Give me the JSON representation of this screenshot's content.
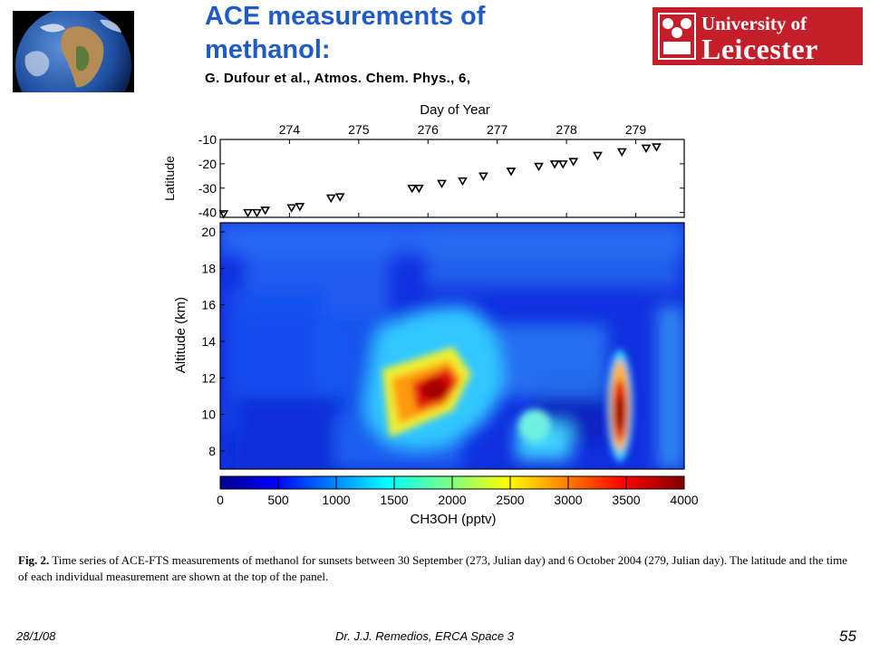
{
  "slide": {
    "title_line1": "ACE measurements of",
    "title_line2": "methanol:",
    "subtitle": "G. Dufour et al., Atmos. Chem. Phys., 6,",
    "logo": {
      "line1": "University of",
      "line2": "Leicester"
    },
    "caption_fig": "Fig. 2.",
    "caption_text": "Time series of ACE-FTS measurements of methanol for sunsets between 30 September (273, Julian day) and 6 October 2004 (279, Julian day). The latitude and the time of each individual measurement are shown at the top of the panel.",
    "footer_date": "28/1/08",
    "footer_author": "Dr. J.J. Remedios, ERCA Space 3",
    "page_number": "55"
  },
  "chart_data": [
    {
      "type": "scatter",
      "title": "Day of Year",
      "xlabel": "Day of Year",
      "ylabel": "Latitude",
      "xlim": [
        273.0,
        279.7
      ],
      "ylim": [
        -42,
        -10
      ],
      "x_ticks": [
        "274",
        "275",
        "276",
        "277",
        "278",
        "279"
      ],
      "y_ticks": [
        "-10",
        "-20",
        "-30",
        "-40"
      ],
      "marker": "down-triangle",
      "points": [
        {
          "x": 273.05,
          "y": -40.5
        },
        {
          "x": 273.4,
          "y": -40
        },
        {
          "x": 273.53,
          "y": -40
        },
        {
          "x": 273.65,
          "y": -39
        },
        {
          "x": 274.03,
          "y": -38
        },
        {
          "x": 274.15,
          "y": -37.5
        },
        {
          "x": 274.6,
          "y": -34
        },
        {
          "x": 274.73,
          "y": -33.5
        },
        {
          "x": 275.77,
          "y": -30
        },
        {
          "x": 275.87,
          "y": -30
        },
        {
          "x": 276.2,
          "y": -28
        },
        {
          "x": 276.5,
          "y": -27
        },
        {
          "x": 276.8,
          "y": -25
        },
        {
          "x": 277.2,
          "y": -23
        },
        {
          "x": 277.6,
          "y": -21
        },
        {
          "x": 277.83,
          "y": -20
        },
        {
          "x": 277.95,
          "y": -20
        },
        {
          "x": 278.1,
          "y": -19
        },
        {
          "x": 278.45,
          "y": -16.5
        },
        {
          "x": 278.8,
          "y": -15
        },
        {
          "x": 279.15,
          "y": -13.5
        },
        {
          "x": 279.3,
          "y": -13
        }
      ]
    },
    {
      "type": "heatmap",
      "ylabel": "Altitude (km)",
      "ylim": [
        7,
        20.5
      ],
      "y_ticks": [
        "8",
        "10",
        "12",
        "14",
        "16",
        "18",
        "20"
      ],
      "colorbar": {
        "label": "CH3OH (pptv)",
        "range": [
          0,
          4000
        ],
        "ticks": [
          "0",
          "500",
          "1000",
          "1500",
          "2000",
          "2500",
          "3000",
          "3500",
          "4000"
        ]
      }
    }
  ]
}
